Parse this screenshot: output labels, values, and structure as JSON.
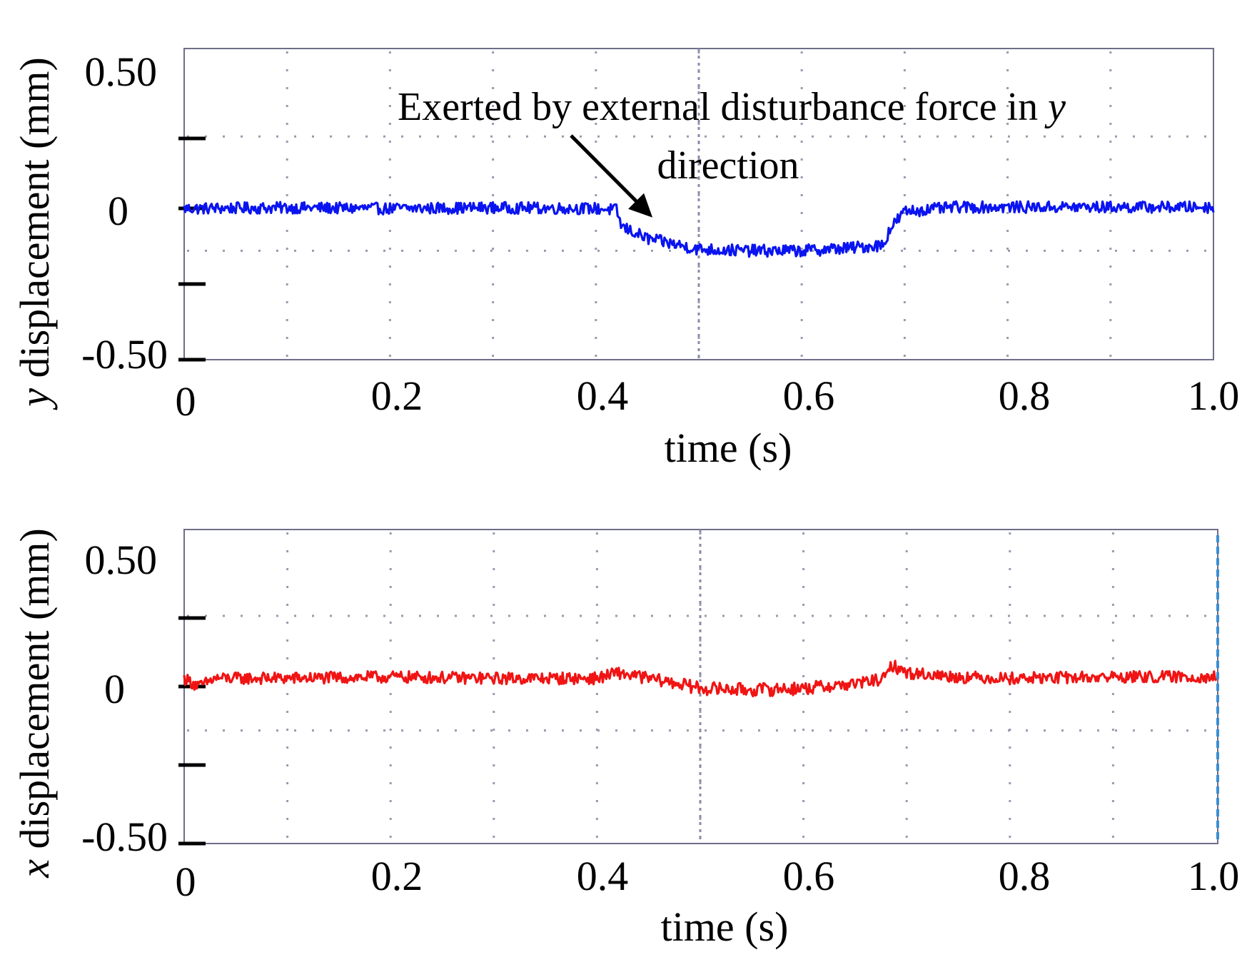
{
  "chart_data": [
    {
      "type": "line",
      "id": "top",
      "ylabel_var": "y",
      "ylabel_rest": " displacement (mm)",
      "xlabel": "time (s)",
      "xlim": [
        0,
        1.0
      ],
      "ylim": [
        -0.5,
        0.5
      ],
      "x_ticks": [
        "0",
        "0.2",
        "0.4",
        "0.6",
        "0.8",
        "1.0"
      ],
      "y_ticks": [
        "0.50",
        "0",
        "-0.50"
      ],
      "series": [
        {
          "name": "y displacement",
          "color": "#0a14f0",
          "points": [
            [
              0,
              0
            ],
            [
              0.1,
              0.003
            ],
            [
              0.2,
              0.0
            ],
            [
              0.3,
              0.003
            ],
            [
              0.4,
              0.0
            ],
            [
              0.42,
              -0.005
            ],
            [
              0.425,
              -0.06
            ],
            [
              0.45,
              -0.1
            ],
            [
              0.5,
              -0.135
            ],
            [
              0.55,
              -0.14
            ],
            [
              0.6,
              -0.14
            ],
            [
              0.65,
              -0.13
            ],
            [
              0.68,
              -0.12
            ],
            [
              0.685,
              -0.07
            ],
            [
              0.7,
              -0.01
            ],
            [
              0.75,
              0.005
            ],
            [
              0.8,
              0.005
            ],
            [
              0.9,
              0.005
            ],
            [
              1.0,
              0.005
            ]
          ],
          "noise": 0.02
        }
      ],
      "annotation": {
        "line1_prefix": "Exerted by external disturbance force in ",
        "line1_var": "y",
        "line2": "direction",
        "arrow_tip": [
          0.455,
          -0.03
        ]
      }
    },
    {
      "type": "line",
      "id": "bottom",
      "ylabel_var": "x",
      "ylabel_rest": " displacement (mm)",
      "xlabel": "time (s)",
      "xlim": [
        0,
        1.0
      ],
      "ylim": [
        -0.5,
        0.5
      ],
      "x_ticks": [
        "0",
        "0.2",
        "0.4",
        "0.6",
        "0.8",
        "1.0"
      ],
      "y_ticks": [
        "0.50",
        "0",
        "-0.50"
      ],
      "series": [
        {
          "name": "x displacement",
          "color": "#f01414",
          "points": [
            [
              0,
              0.03
            ],
            [
              0.015,
              0.0
            ],
            [
              0.03,
              0.03
            ],
            [
              0.1,
              0.03
            ],
            [
              0.2,
              0.035
            ],
            [
              0.3,
              0.03
            ],
            [
              0.4,
              0.03
            ],
            [
              0.42,
              0.05
            ],
            [
              0.45,
              0.03
            ],
            [
              0.48,
              0.01
            ],
            [
              0.5,
              -0.005
            ],
            [
              0.55,
              -0.01
            ],
            [
              0.6,
              -0.005
            ],
            [
              0.65,
              0.01
            ],
            [
              0.68,
              0.03
            ],
            [
              0.685,
              0.08
            ],
            [
              0.7,
              0.05
            ],
            [
              0.75,
              0.035
            ],
            [
              0.8,
              0.03
            ],
            [
              0.9,
              0.035
            ],
            [
              1.0,
              0.035
            ]
          ],
          "noise": 0.022
        }
      ]
    }
  ]
}
